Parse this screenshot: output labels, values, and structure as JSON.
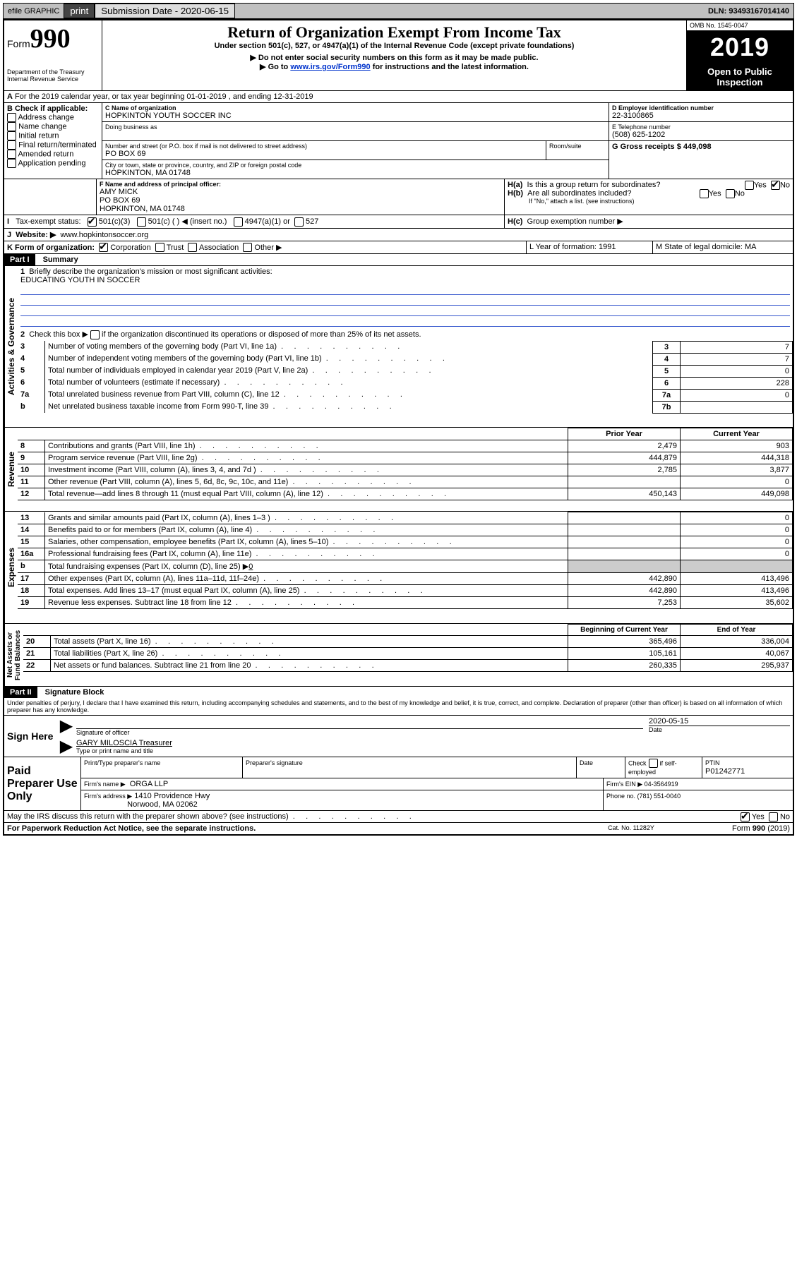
{
  "topbar": {
    "efile": "efile GRAPHIC",
    "print": "print",
    "submission_label": "Submission Date - 2020-06-15",
    "dln": "DLN: 93493167014140"
  },
  "header": {
    "form_prefix": "Form",
    "form_number": "990",
    "dept": "Department of the Treasury",
    "irs": "Internal Revenue Service",
    "title": "Return of Organization Exempt From Income Tax",
    "subtitle": "Under section 501(c), 527, or 4947(a)(1) of the Internal Revenue Code (except private foundations)",
    "note1": "▶ Do not enter social security numbers on this form as it may be made public.",
    "note2_pre": "▶ Go to ",
    "note2_link": "www.irs.gov/Form990",
    "note2_post": " for instructions and the latest information.",
    "omb": "OMB No. 1545-0047",
    "year": "2019",
    "open_public": "Open to Public Inspection"
  },
  "sectionA": {
    "period": "For the 2019 calendar year, or tax year beginning 01-01-2019    , and ending 12-31-2019",
    "b_label": "B Check if applicable:",
    "b_items": [
      "Address change",
      "Name change",
      "Initial return",
      "Final return/terminated",
      "Amended return",
      "Application pending"
    ],
    "c_label": "C Name of organization",
    "org_name": "HOPKINTON YOUTH SOCCER INC",
    "dba_label": "Doing business as",
    "street_label": "Number and street (or P.O. box if mail is not delivered to street address)",
    "room_label": "Room/suite",
    "street": "PO BOX 69",
    "city_label": "City or town, state or province, country, and ZIP or foreign postal code",
    "city": "HOPKINTON, MA  01748",
    "f_label": "F Name and address of principal officer:",
    "f_name": "AMY MICK",
    "f_street": "PO BOX 69",
    "f_city": "HOPKINTON, MA  01748",
    "d_label": "D Employer identification number",
    "ein": "22-3100865",
    "e_label": "E Telephone number",
    "phone": "(508) 625-1202",
    "g_label": "G Gross receipts $ 449,098",
    "ha_label": "Is this a group return for subordinates?",
    "hb_label": "Are all subordinates included?",
    "hb_note": "If \"No,\" attach a list. (see instructions)",
    "hc_label": "Group exemption number ▶",
    "i_label": "Tax-exempt status:",
    "i_501c3": "501(c)(3)",
    "i_501c": "501(c) (   ) ◀ (insert no.)",
    "i_4947": "4947(a)(1) or",
    "i_527": "527",
    "j_label": "Website: ▶",
    "website": "www.hopkintonsoccer.org",
    "k_label": "K Form of organization:",
    "k_items": [
      "Corporation",
      "Trust",
      "Association",
      "Other ▶"
    ],
    "l_label": "L Year of formation: 1991",
    "m_label": "M State of legal domicile: MA"
  },
  "part1": {
    "label": "Part I",
    "title": "Summary",
    "line1": "Briefly describe the organization's mission or most significant activities:",
    "mission": "EDUCATING YOUTH IN SOCCER",
    "line2": "Check this box ▶",
    "line2_post": "if the organization discontinued its operations or disposed of more than 25% of its net assets.",
    "rows": [
      {
        "n": "3",
        "t": "Number of voting members of the governing body (Part VI, line 1a)",
        "box": "3",
        "v": "7"
      },
      {
        "n": "4",
        "t": "Number of independent voting members of the governing body (Part VI, line 1b)",
        "box": "4",
        "v": "7"
      },
      {
        "n": "5",
        "t": "Total number of individuals employed in calendar year 2019 (Part V, line 2a)",
        "box": "5",
        "v": "0"
      },
      {
        "n": "6",
        "t": "Total number of volunteers (estimate if necessary)",
        "box": "6",
        "v": "228"
      },
      {
        "n": "7a",
        "t": "Total unrelated business revenue from Part VIII, column (C), line 12",
        "box": "7a",
        "v": "0"
      },
      {
        "n": "b",
        "t": "Net unrelated business taxable income from Form 990-T, line 39",
        "box": "7b",
        "v": ""
      }
    ],
    "prior_year": "Prior Year",
    "current_year": "Current Year",
    "section_gov": "Activities & Governance",
    "section_rev": "Revenue",
    "section_exp": "Expenses",
    "section_net": "Net Assets or Fund Balances",
    "revenue_rows": [
      {
        "n": "8",
        "t": "Contributions and grants (Part VIII, line 1h)",
        "py": "2,479",
        "cy": "903"
      },
      {
        "n": "9",
        "t": "Program service revenue (Part VIII, line 2g)",
        "py": "444,879",
        "cy": "444,318"
      },
      {
        "n": "10",
        "t": "Investment income (Part VIII, column (A), lines 3, 4, and 7d )",
        "py": "2,785",
        "cy": "3,877"
      },
      {
        "n": "11",
        "t": "Other revenue (Part VIII, column (A), lines 5, 6d, 8c, 9c, 10c, and 11e)",
        "py": "",
        "cy": "0"
      },
      {
        "n": "12",
        "t": "Total revenue—add lines 8 through 11 (must equal Part VIII, column (A), line 12)",
        "py": "450,143",
        "cy": "449,098"
      }
    ],
    "expense_rows": [
      {
        "n": "13",
        "t": "Grants and similar amounts paid (Part IX, column (A), lines 1–3 )",
        "py": "",
        "cy": "0"
      },
      {
        "n": "14",
        "t": "Benefits paid to or for members (Part IX, column (A), line 4)",
        "py": "",
        "cy": "0"
      },
      {
        "n": "15",
        "t": "Salaries, other compensation, employee benefits (Part IX, column (A), lines 5–10)",
        "py": "",
        "cy": "0"
      },
      {
        "n": "16a",
        "t": "Professional fundraising fees (Part IX, column (A), line 11e)",
        "py": "",
        "cy": "0"
      }
    ],
    "line16b_pre": "b",
    "line16b": "Total fundraising expenses (Part IX, column (D), line 25) ▶",
    "line16b_val": "0",
    "expense_rows2": [
      {
        "n": "17",
        "t": "Other expenses (Part IX, column (A), lines 11a–11d, 11f–24e)",
        "py": "442,890",
        "cy": "413,496"
      },
      {
        "n": "18",
        "t": "Total expenses. Add lines 13–17 (must equal Part IX, column (A), line 25)",
        "py": "442,890",
        "cy": "413,496"
      },
      {
        "n": "19",
        "t": "Revenue less expenses. Subtract line 18 from line 12",
        "py": "7,253",
        "cy": "35,602"
      }
    ],
    "bcy": "Beginning of Current Year",
    "eoy": "End of Year",
    "net_rows": [
      {
        "n": "20",
        "t": "Total assets (Part X, line 16)",
        "py": "365,496",
        "cy": "336,004"
      },
      {
        "n": "21",
        "t": "Total liabilities (Part X, line 26)",
        "py": "105,161",
        "cy": "40,067"
      },
      {
        "n": "22",
        "t": "Net assets or fund balances. Subtract line 21 from line 20",
        "py": "260,335",
        "cy": "295,937"
      }
    ]
  },
  "part2": {
    "label": "Part II",
    "title": "Signature Block",
    "perjury": "Under penalties of perjury, I declare that I have examined this return, including accompanying schedules and statements, and to the best of my knowledge and belief, it is true, correct, and complete. Declaration of preparer (other than officer) is based on all information of which preparer has any knowledge.",
    "sign_here": "Sign Here",
    "sig_officer": "Signature of officer",
    "sig_date": "2020-05-15",
    "date_label": "Date",
    "officer_name": "GARY MILOSCIA  Treasurer",
    "type_name": "Type or print name and title",
    "paid_label": "Paid Preparer Use Only",
    "prep_name_label": "Print/Type preparer's name",
    "prep_sig_label": "Preparer's signature",
    "prep_date_label": "Date",
    "check_if": "Check",
    "self_employed": "if self-employed",
    "ptin_label": "PTIN",
    "ptin": "P01242771",
    "firm_name_label": "Firm's name    ▶",
    "firm_name": "ORGA LLP",
    "firm_ein_label": "Firm's EIN ▶ 04-3564919",
    "firm_addr_label": "Firm's address ▶",
    "firm_addr1": "1410 Providence Hwy",
    "firm_addr2": "Norwood, MA  02062",
    "phone_label": "Phone no. (781) 551-0040",
    "discuss": "May the IRS discuss this return with the preparer shown above? (see instructions)",
    "paperwork": "For Paperwork Reduction Act Notice, see the separate instructions.",
    "cat": "Cat. No. 11282Y",
    "form_footer": "Form 990 (2019)",
    "yes": "Yes",
    "no": "No",
    "ha": "H(a)",
    "hb": "H(b)",
    "hc": "H(c)"
  }
}
